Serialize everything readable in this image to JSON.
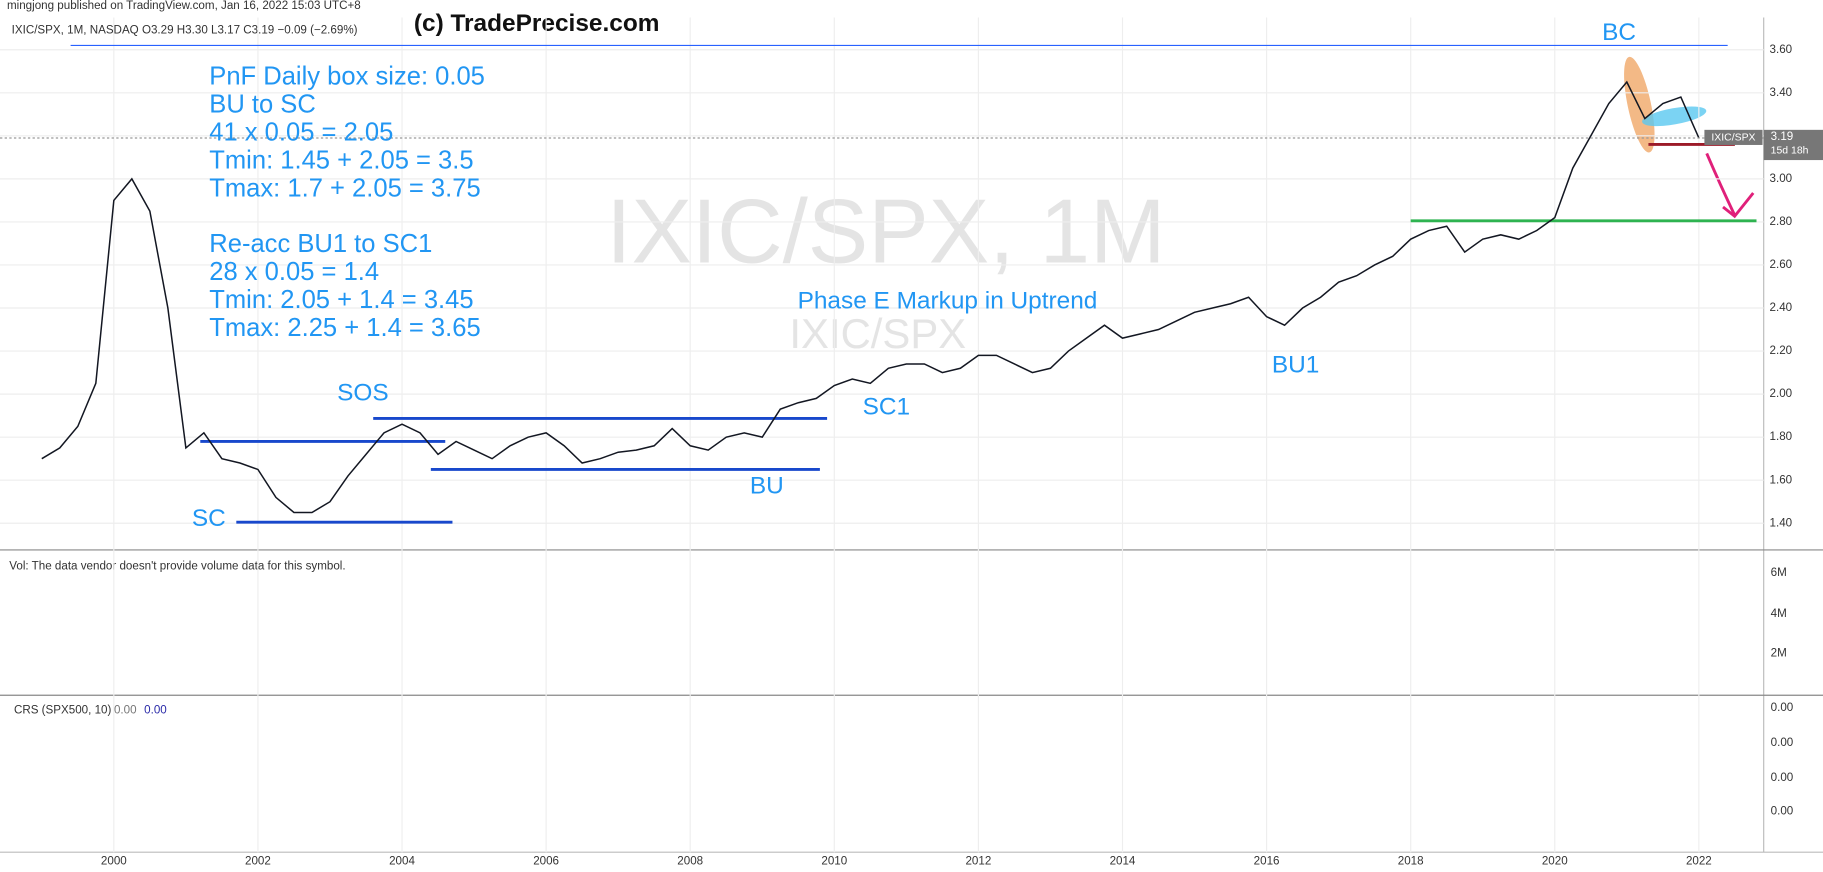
{
  "header": {
    "publisher": "mingjong published on TradingView.com, Jan 16, 2022 15:03 UTC+8",
    "copyright": "(c) TradePrecise.com",
    "symbol_line": "IXIC/SPX, 1M, NASDAQ  O3.29 H3.30 L3.17 C3.19 −0.09 (−2.69%)"
  },
  "chart_data": {
    "type": "line",
    "watermark": "IXIC/SPX, 1M",
    "watermark_small": "IXIC/SPX",
    "x": [
      1999.0,
      1999.25,
      1999.5,
      1999.75,
      2000.0,
      2000.25,
      2000.5,
      2000.75,
      2001.0,
      2001.25,
      2001.5,
      2001.75,
      2002.0,
      2002.25,
      2002.5,
      2002.75,
      2003.0,
      2003.25,
      2003.5,
      2003.75,
      2004.0,
      2004.25,
      2004.5,
      2004.75,
      2005.0,
      2005.25,
      2005.5,
      2005.75,
      2006.0,
      2006.25,
      2006.5,
      2006.75,
      2007.0,
      2007.25,
      2007.5,
      2007.75,
      2008.0,
      2008.25,
      2008.5,
      2008.75,
      2009.0,
      2009.25,
      2009.5,
      2009.75,
      2010.0,
      2010.25,
      2010.5,
      2010.75,
      2011.0,
      2011.25,
      2011.5,
      2011.75,
      2012.0,
      2012.25,
      2012.5,
      2012.75,
      2013.0,
      2013.25,
      2013.5,
      2013.75,
      2014.0,
      2014.25,
      2014.5,
      2014.75,
      2015.0,
      2015.25,
      2015.5,
      2015.75,
      2016.0,
      2016.25,
      2016.5,
      2016.75,
      2017.0,
      2017.25,
      2017.5,
      2017.75,
      2018.0,
      2018.25,
      2018.5,
      2018.75,
      2019.0,
      2019.25,
      2019.5,
      2019.75,
      2020.0,
      2020.25,
      2020.5,
      2020.75,
      2021.0,
      2021.25,
      2021.5,
      2021.75,
      2022.0
    ],
    "series": [
      {
        "name": "IXIC/SPX",
        "color": "#131722",
        "values": [
          1.7,
          1.75,
          1.85,
          2.05,
          2.9,
          3.0,
          2.85,
          2.4,
          1.75,
          1.82,
          1.7,
          1.68,
          1.65,
          1.52,
          1.45,
          1.45,
          1.5,
          1.62,
          1.72,
          1.82,
          1.86,
          1.82,
          1.72,
          1.78,
          1.74,
          1.7,
          1.76,
          1.8,
          1.82,
          1.76,
          1.68,
          1.7,
          1.73,
          1.74,
          1.76,
          1.84,
          1.76,
          1.74,
          1.8,
          1.82,
          1.8,
          1.93,
          1.96,
          1.98,
          2.04,
          2.07,
          2.05,
          2.12,
          2.14,
          2.14,
          2.1,
          2.12,
          2.18,
          2.18,
          2.14,
          2.1,
          2.12,
          2.2,
          2.26,
          2.32,
          2.26,
          2.28,
          2.3,
          2.34,
          2.38,
          2.4,
          2.42,
          2.45,
          2.36,
          2.32,
          2.4,
          2.45,
          2.52,
          2.55,
          2.6,
          2.64,
          2.72,
          2.76,
          2.78,
          2.66,
          2.72,
          2.74,
          2.72,
          2.76,
          2.82,
          3.05,
          3.2,
          3.35,
          3.45,
          3.28,
          3.35,
          3.38,
          3.19
        ]
      }
    ],
    "last_price_label": "3.19",
    "countdown": "15d 18h",
    "xlim": [
      1998.42,
      2022.9
    ],
    "xticks": [
      2000,
      2002,
      2004,
      2006,
      2008,
      2010,
      2012,
      2014,
      2016,
      2018,
      2020,
      2022
    ],
    "ylim": [
      1.276,
      3.75
    ],
    "yticks": [
      {
        "value": 1.4,
        "label": "1.40"
      },
      {
        "value": 1.6,
        "label": "1.60"
      },
      {
        "value": 1.8,
        "label": "1.80"
      },
      {
        "value": 2.0,
        "label": "2.00"
      },
      {
        "value": 2.2,
        "label": "2.20"
      },
      {
        "value": 2.4,
        "label": "2.40"
      },
      {
        "value": 2.6,
        "label": "2.60"
      },
      {
        "value": 2.8,
        "label": "2.80"
      },
      {
        "value": 3.0,
        "label": "3.00"
      },
      {
        "value": 3.2,
        "label": "3.20"
      },
      {
        "value": 3.4,
        "label": "3.40"
      },
      {
        "value": 3.6,
        "label": "3.60"
      }
    ],
    "grid": true,
    "hlines": [
      {
        "value": 3.62,
        "x": [
          1999.4,
          2022.4
        ],
        "color": "#2962ff"
      },
      {
        "value": 1.887,
        "x": [
          2003.6,
          2009.9
        ],
        "color": "#1848cc"
      },
      {
        "value": 1.78,
        "x": [
          2001.2,
          2004.6
        ],
        "color": "#1848cc"
      },
      {
        "value": 1.65,
        "x": [
          2004.4,
          2009.8
        ],
        "color": "#1848cc"
      },
      {
        "value": 1.405,
        "x": [
          2001.7,
          2004.7
        ],
        "color": "#1848cc"
      },
      {
        "value": 2.805,
        "x": [
          2018.0,
          2022.8
        ],
        "color": "#2eb350"
      },
      {
        "value": 3.16,
        "x": [
          2021.3,
          2022.5
        ],
        "color": "#9c1a28"
      }
    ],
    "notes": [
      "PnF Daily box size: 0.05",
      "BU to SC",
      "41 x 0.05 = 2.05",
      "Tmin: 1.45 + 2.05 = 3.5",
      "Tmax: 1.7 + 2.05 = 3.75",
      "Re-acc BU1 to SC1",
      "28 x 0.05 = 1.4",
      "Tmin: 2.05 + 1.4 = 3.45",
      "Tmax: 2.25 + 1.4 = 3.65"
    ],
    "labels": [
      "SC",
      "SOS",
      "BU",
      "SC1",
      "BU1",
      "BC",
      "Phase E Markup in Uptrend"
    ]
  },
  "volume_pane": {
    "text": "Vol: The data vendor doesn't provide volume data for this symbol.",
    "tick_labels": [
      "6M",
      "4M",
      "2M"
    ]
  },
  "crs_pane": {
    "title": "CRS (SPX500, 10)",
    "value_a": "0.00",
    "value_b": "0.00",
    "tick_labels": [
      "0.00",
      "0.00",
      "0.00",
      "0.00"
    ]
  }
}
